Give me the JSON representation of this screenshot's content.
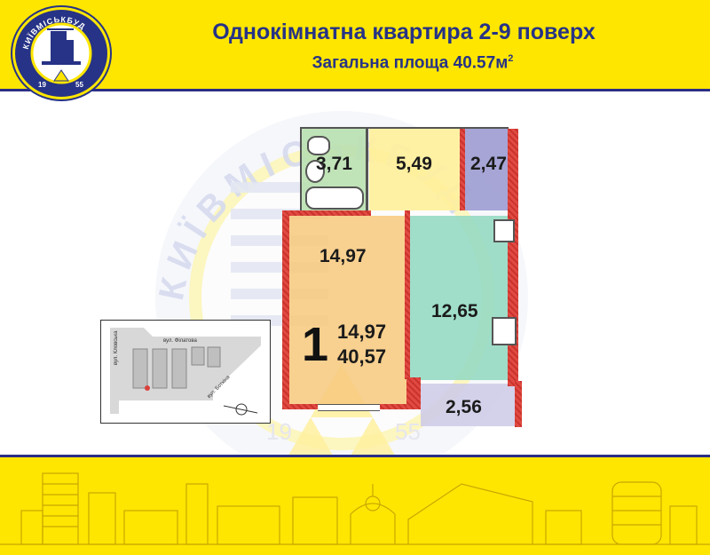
{
  "header": {
    "title": "Однокімнатна квартира 2-9 поверх",
    "subtitle": "Загальна площа 40.57м",
    "subtitle_sup": "2"
  },
  "logo": {
    "text": "КИЇВМІСЬКБУД",
    "year_left": "19",
    "year_right": "55"
  },
  "watermark": {
    "text": "КИЇВМІСЬКБУД",
    "year_left": "19",
    "year_right": "55"
  },
  "rooms": {
    "bathroom": "3,71",
    "hall": "5,49",
    "storage": "2,47",
    "living": "14,97",
    "kitchen": "12,65",
    "balcony": "2,56"
  },
  "summary": {
    "rooms_count": "1",
    "living_area": "14,97",
    "total_area": "40,57"
  },
  "sitemap": {
    "street_top": "вул. Філатова",
    "street_left": "вул. Кловська",
    "street_bottom": "вул. Боткіна"
  },
  "colors": {
    "brand_yellow": "#FFE600",
    "brand_blue": "#263386",
    "living_room": "#F7C97F",
    "kitchen": "#93D9C2",
    "hall": "#FFF09A",
    "storage": "#9C9BD2",
    "balcony": "#CFCCE8",
    "bathroom": "#B9E0B0"
  }
}
